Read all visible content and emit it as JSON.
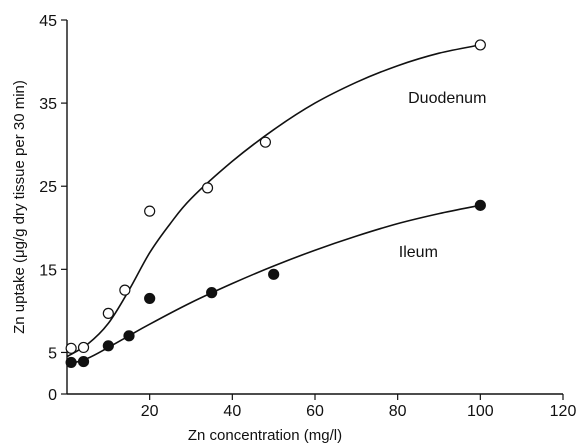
{
  "chart_data": {
    "type": "scatter",
    "xlabel": "Zn concentration (mg/l)",
    "ylabel": "Zn uptake (μg/g dry tissue per 30 min)",
    "xlim": [
      0,
      120
    ],
    "ylim": [
      0,
      45
    ],
    "x_ticks": [
      20,
      40,
      60,
      80,
      100,
      120
    ],
    "y_ticks": [
      0,
      5,
      15,
      25,
      35,
      45
    ],
    "grid": false,
    "series": [
      {
        "name": "Duodenum",
        "marker": "open-circle",
        "color": "#111111",
        "points": [
          {
            "x": 1,
            "y": 5.5
          },
          {
            "x": 4,
            "y": 5.6
          },
          {
            "x": 10,
            "y": 9.7
          },
          {
            "x": 14,
            "y": 12.5
          },
          {
            "x": 20,
            "y": 22
          },
          {
            "x": 34,
            "y": 24.8
          },
          {
            "x": 48,
            "y": 30.3
          },
          {
            "x": 100,
            "y": 42
          }
        ],
        "curve": [
          {
            "x": 0,
            "y": 4.5
          },
          {
            "x": 5,
            "y": 6
          },
          {
            "x": 10,
            "y": 8.5
          },
          {
            "x": 15,
            "y": 12.5
          },
          {
            "x": 20,
            "y": 17
          },
          {
            "x": 25,
            "y": 20.5
          },
          {
            "x": 30,
            "y": 23.5
          },
          {
            "x": 40,
            "y": 28
          },
          {
            "x": 50,
            "y": 31.8
          },
          {
            "x": 60,
            "y": 35
          },
          {
            "x": 70,
            "y": 37.5
          },
          {
            "x": 80,
            "y": 39.5
          },
          {
            "x": 90,
            "y": 41
          },
          {
            "x": 100,
            "y": 42
          }
        ]
      },
      {
        "name": "Ileum",
        "marker": "filled-circle",
        "color": "#111111",
        "points": [
          {
            "x": 1,
            "y": 3.8
          },
          {
            "x": 4,
            "y": 3.9
          },
          {
            "x": 10,
            "y": 5.8
          },
          {
            "x": 15,
            "y": 7
          },
          {
            "x": 20,
            "y": 11.5
          },
          {
            "x": 35,
            "y": 12.2
          },
          {
            "x": 50,
            "y": 14.4
          },
          {
            "x": 100,
            "y": 22.7
          }
        ],
        "curve": [
          {
            "x": 0,
            "y": 3.5
          },
          {
            "x": 5,
            "y": 4.3
          },
          {
            "x": 10,
            "y": 5.6
          },
          {
            "x": 15,
            "y": 7
          },
          {
            "x": 20,
            "y": 8.4
          },
          {
            "x": 30,
            "y": 11
          },
          {
            "x": 40,
            "y": 13.3
          },
          {
            "x": 50,
            "y": 15.4
          },
          {
            "x": 60,
            "y": 17.3
          },
          {
            "x": 70,
            "y": 19
          },
          {
            "x": 80,
            "y": 20.5
          },
          {
            "x": 90,
            "y": 21.7
          },
          {
            "x": 100,
            "y": 22.7
          }
        ]
      }
    ]
  }
}
